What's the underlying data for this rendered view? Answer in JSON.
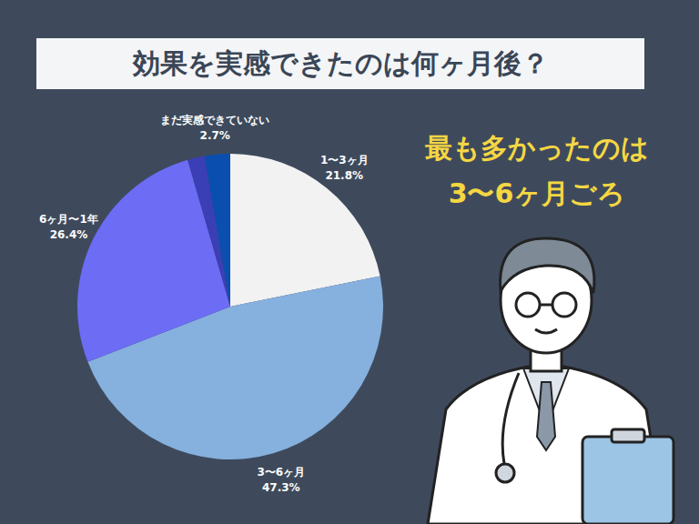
{
  "chart_data": {
    "type": "pie",
    "title": "効果を実感できたのは何ヶ月後？",
    "annotation": [
      "最も多かったのは",
      "3〜6ヶ月ごろ"
    ],
    "categories": [
      "1〜3ヶ月",
      "3〜6ヶ月",
      "6ヶ月〜1年",
      null,
      "まだ実感できていない"
    ],
    "values": [
      21.8,
      47.3,
      26.4,
      1.8,
      2.7
    ],
    "value_labels": [
      "21.8%",
      "47.3%",
      "26.4%",
      null,
      "2.7%"
    ],
    "colors": [
      "#f2f2f2",
      "#86b0de",
      "#6c6cf5",
      "#3b3fb5",
      "#0a4fb0"
    ],
    "data_labels": true
  }
}
